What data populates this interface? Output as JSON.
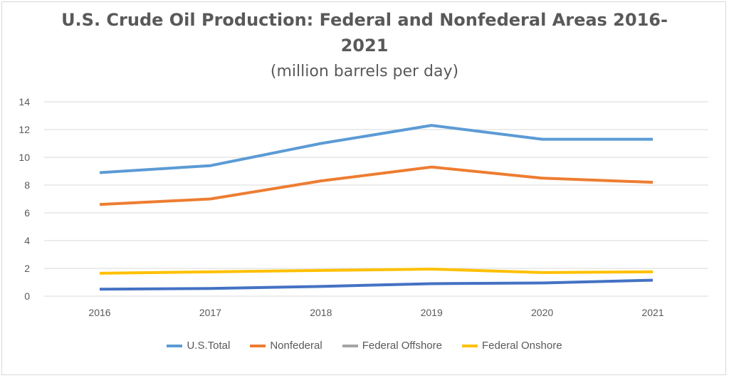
{
  "chart_data": {
    "type": "line",
    "title_line1": "U.S. Crude Oil Production: Federal and Nonfederal Areas 2016-",
    "title_line2": "2021",
    "subtitle": "(million barrels per day)",
    "xlabel": "",
    "ylabel": "",
    "categories": [
      "2016",
      "2017",
      "2018",
      "2019",
      "2020",
      "2021"
    ],
    "ylim": [
      0,
      14
    ],
    "yticks": [
      0,
      2,
      4,
      6,
      8,
      10,
      12,
      14
    ],
    "grid": true,
    "legend_position": "bottom",
    "series": [
      {
        "name": "U.S.Total",
        "color": "#5b9bd5",
        "legend_color": "#5b9bd5",
        "values": [
          8.9,
          9.4,
          11.0,
          12.3,
          11.3,
          11.3
        ]
      },
      {
        "name": "Nonfederal",
        "color": "#ed7d31",
        "legend_color": "#ed7d31",
        "values": [
          6.6,
          7.0,
          8.3,
          9.3,
          8.5,
          8.2
        ]
      },
      {
        "name": "Federal Offshore",
        "color": "#4472c4",
        "legend_color": "#a5a5a5",
        "values": [
          0.5,
          0.55,
          0.7,
          0.9,
          0.95,
          1.15
        ]
      },
      {
        "name": "Federal Onshore",
        "color": "#ffc000",
        "legend_color": "#ffc000",
        "values": [
          1.65,
          1.75,
          1.85,
          1.95,
          1.7,
          1.75
        ]
      }
    ]
  }
}
